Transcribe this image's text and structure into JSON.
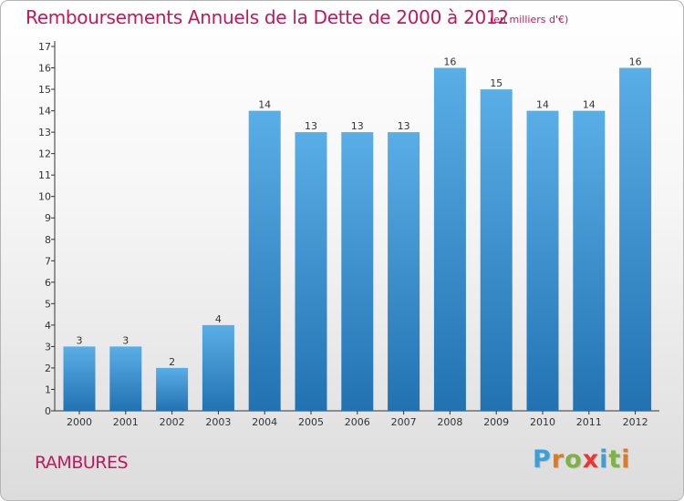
{
  "header": {
    "title": "Remboursements Annuels de la Dette de 2000 à 2012",
    "subtitle": "(en milliers d'€)"
  },
  "footer": {
    "commune": "RAMBURES",
    "logo_letters": [
      "P",
      "r",
      "o",
      "x",
      "i",
      "t",
      "i"
    ],
    "logo_colors": [
      "#3aa0d8",
      "#e07a1f",
      "#7cb342",
      "#e53935",
      "#3aa0d8",
      "#7cb342",
      "#e07a1f"
    ]
  },
  "colors": {
    "bar_top": "#5aaee6",
    "bar_bottom": "#2272b2",
    "title": "#c2185b",
    "axis": "#333333"
  },
  "chart_data": {
    "type": "bar",
    "categories": [
      "2000",
      "2001",
      "2002",
      "2003",
      "2004",
      "2005",
      "2006",
      "2007",
      "2008",
      "2009",
      "2010",
      "2011",
      "2012"
    ],
    "values": [
      3,
      3,
      2,
      4,
      14,
      13,
      13,
      13,
      16,
      15,
      14,
      14,
      16
    ],
    "yticks": [
      0,
      1,
      2,
      3,
      4,
      5,
      6,
      7,
      8,
      9,
      10,
      11,
      12,
      13,
      14,
      15,
      16,
      17
    ],
    "ylim": [
      0,
      17
    ],
    "grid": false,
    "legend": "none"
  }
}
